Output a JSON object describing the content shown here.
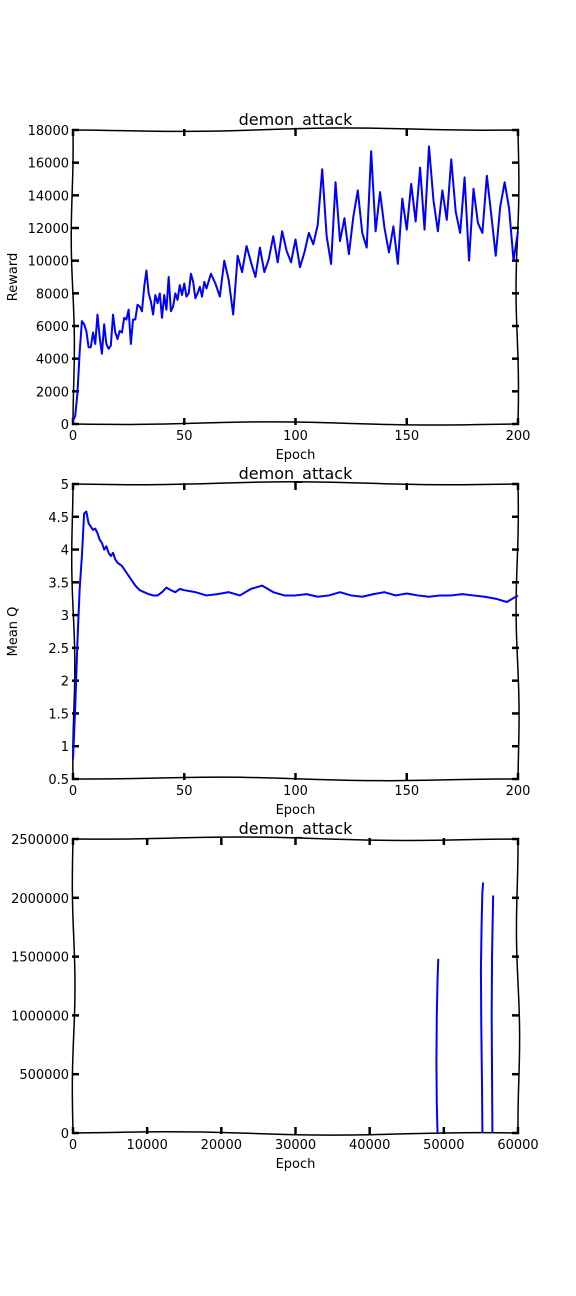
{
  "line_color": "#0000ff",
  "chart_data": [
    {
      "type": "line",
      "title": "demon_attack",
      "xlabel": "Epoch",
      "ylabel": "Reward",
      "xlim": [
        0,
        200
      ],
      "ylim": [
        0,
        18000
      ],
      "xticks": [
        0,
        50,
        100,
        150,
        200
      ],
      "yticks": [
        0,
        2000,
        4000,
        6000,
        8000,
        10000,
        12000,
        14000,
        16000,
        18000
      ],
      "grid": false,
      "series": [
        {
          "x": [
            0,
            1,
            2,
            3,
            4,
            5,
            6,
            7,
            8,
            9,
            10,
            11,
            12,
            13,
            14,
            15,
            16,
            17,
            18,
            19,
            20,
            21,
            22,
            23,
            24,
            25,
            26,
            27,
            28,
            29,
            30,
            31,
            32,
            33,
            34,
            35,
            36,
            37,
            38,
            39,
            40,
            41,
            42,
            43,
            44,
            45,
            46,
            47,
            48,
            49,
            50,
            51,
            52,
            53,
            54,
            55,
            56,
            57,
            58,
            59,
            60,
            62,
            64,
            66,
            68,
            70,
            72,
            74,
            76,
            78,
            80,
            82,
            84,
            86,
            88,
            90,
            92,
            94,
            96,
            98,
            100,
            102,
            104,
            106,
            108,
            110,
            112,
            114,
            116,
            118,
            120,
            122,
            124,
            126,
            128,
            130,
            132,
            134,
            136,
            138,
            140,
            142,
            144,
            146,
            148,
            150,
            152,
            154,
            156,
            158,
            160,
            162,
            164,
            166,
            168,
            170,
            172,
            174,
            176,
            178,
            180,
            182,
            184,
            186,
            188,
            190,
            192,
            194,
            196,
            198,
            200
          ],
          "y": [
            200,
            500,
            1900,
            4400,
            6300,
            6100,
            5700,
            4700,
            4700,
            5600,
            4900,
            6700,
            5300,
            4300,
            6100,
            4900,
            4600,
            4800,
            6700,
            5600,
            5200,
            5700,
            5600,
            6500,
            6400,
            7000,
            4900,
            6400,
            6400,
            7300,
            7200,
            6900,
            8400,
            9400,
            8000,
            7500,
            6700,
            7900,
            7400,
            8000,
            6500,
            7900,
            7000,
            9000,
            6900,
            7200,
            8000,
            7600,
            8500,
            7900,
            8600,
            7800,
            8000,
            9200,
            8700,
            7700,
            8000,
            8400,
            7800,
            8700,
            8300,
            9200,
            8600,
            7800,
            10000,
            8800,
            6700,
            10300,
            9300,
            10900,
            9900,
            9000,
            10800,
            9300,
            10100,
            11500,
            9900,
            11800,
            10600,
            9900,
            11300,
            9600,
            10500,
            11700,
            11000,
            12200,
            15600,
            11500,
            9800,
            14800,
            11200,
            12600,
            10400,
            12700,
            14300,
            11700,
            10800,
            16700,
            11800,
            14200,
            12000,
            10500,
            12100,
            9800,
            13800,
            11900,
            14700,
            12400,
            15700,
            11900,
            17000,
            13700,
            11800,
            14300,
            12500,
            16200,
            13000,
            11700,
            15100,
            10000,
            14400,
            12300,
            11700,
            15200,
            12800,
            10300,
            13300,
            14800,
            13200,
            10000,
            11800
          ],
          "name": ""
        }
      ]
    },
    {
      "type": "line",
      "title": "demon_attack",
      "xlabel": "Epoch",
      "ylabel": "Mean Q",
      "xlim": [
        0,
        200
      ],
      "ylim": [
        0.5,
        5.0
      ],
      "xticks": [
        0,
        50,
        100,
        150,
        200
      ],
      "yticks": [
        0.5,
        1.0,
        1.5,
        2.0,
        2.5,
        3.0,
        3.5,
        4.0,
        4.5,
        5.0
      ],
      "grid": false,
      "series": [
        {
          "x": [
            0,
            1,
            2,
            3,
            4,
            5,
            6,
            7,
            8,
            9,
            10,
            11,
            12,
            13,
            14,
            15,
            16,
            17,
            18,
            19,
            20,
            22,
            24,
            26,
            28,
            30,
            32,
            34,
            36,
            38,
            40,
            42,
            44,
            46,
            48,
            50,
            55,
            60,
            65,
            70,
            75,
            80,
            85,
            90,
            95,
            100,
            105,
            110,
            115,
            120,
            125,
            130,
            135,
            140,
            145,
            150,
            155,
            160,
            165,
            170,
            175,
            180,
            185,
            190,
            195,
            200
          ],
          "y": [
            0.8,
            1.6,
            2.6,
            3.4,
            3.9,
            4.55,
            4.58,
            4.4,
            4.35,
            4.3,
            4.32,
            4.25,
            4.15,
            4.1,
            4.0,
            4.05,
            3.95,
            3.9,
            3.95,
            3.85,
            3.8,
            3.75,
            3.65,
            3.55,
            3.45,
            3.38,
            3.35,
            3.32,
            3.3,
            3.3,
            3.35,
            3.42,
            3.38,
            3.35,
            3.4,
            3.38,
            3.35,
            3.3,
            3.32,
            3.35,
            3.3,
            3.4,
            3.45,
            3.35,
            3.3,
            3.3,
            3.32,
            3.28,
            3.3,
            3.35,
            3.3,
            3.28,
            3.32,
            3.35,
            3.3,
            3.33,
            3.3,
            3.28,
            3.3,
            3.3,
            3.32,
            3.3,
            3.28,
            3.25,
            3.2,
            3.3
          ],
          "name": ""
        }
      ]
    },
    {
      "type": "line",
      "title": "demon_attack",
      "xlabel": "Epoch",
      "ylabel": "",
      "xlim": [
        0,
        60000
      ],
      "ylim": [
        0,
        2500000
      ],
      "xticks": [
        0,
        10000,
        20000,
        30000,
        40000,
        50000,
        60000
      ],
      "yticks": [
        0,
        500000,
        1000000,
        1500000,
        2000000,
        2500000
      ],
      "grid": false,
      "series": [
        {
          "segments": [
            {
              "x": [
                49150,
                49050,
                49000,
                49050,
                49150,
                49250
              ],
              "y": [
                0,
                250000,
                600000,
                1000000,
                1300000,
                1480000
              ]
            },
            {
              "x": [
                55200,
                55150,
                55050,
                55000,
                55100,
                55200,
                55300
              ],
              "y": [
                0,
                400000,
                900000,
                1400000,
                1800000,
                2050000,
                2130000
              ]
            },
            {
              "x": [
                56550,
                56500,
                56450,
                56500,
                56600,
                56650
              ],
              "y": [
                0,
                500000,
                1000000,
                1500000,
                1850000,
                2020000
              ]
            }
          ],
          "name": ""
        }
      ]
    }
  ]
}
